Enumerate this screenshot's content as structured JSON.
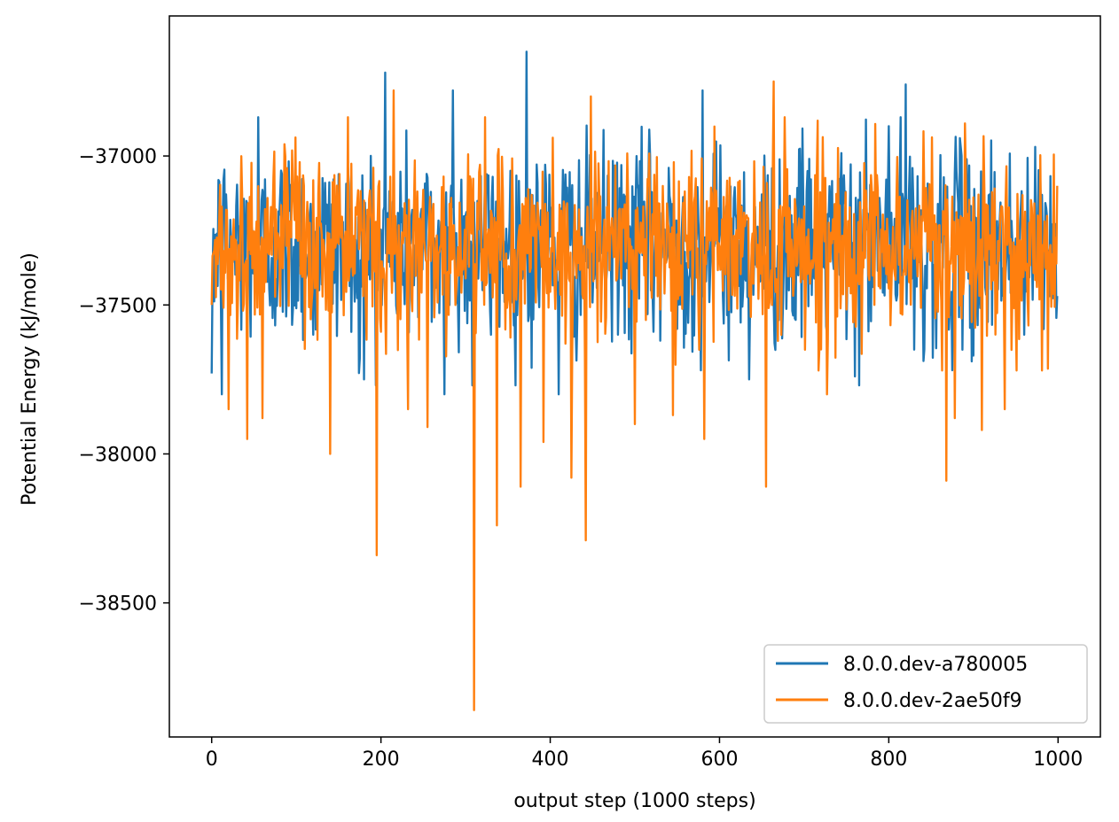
{
  "chart_data": {
    "type": "line",
    "title": "",
    "xlabel": "output step (1000 steps)",
    "ylabel": "Potential Energy (kJ/mole)",
    "xlim": [
      -50,
      1050
    ],
    "ylim": [
      -38950,
      -36530
    ],
    "xticks": [
      0,
      200,
      400,
      600,
      800,
      1000
    ],
    "xtick_labels": [
      "0",
      "200",
      "400",
      "600",
      "800",
      "1000"
    ],
    "yticks": [
      -37000,
      -37500,
      -38000,
      -38500
    ],
    "ytick_labels": [
      "−37000",
      "−37500",
      "−38000",
      "−38500"
    ],
    "grid": false,
    "legend_position": "lower-right",
    "x": {
      "start": 0,
      "end": 999,
      "count": 1000
    },
    "series": [
      {
        "name": "8.0.0.dev-a780005",
        "color": "#1f77b4",
        "mean": -37300,
        "typical_range": [
          -37650,
          -36950
        ],
        "points": [
          [
            0,
            -37730
          ],
          [
            12,
            -37800
          ],
          [
            55,
            -36870
          ],
          [
            120,
            -37600
          ],
          [
            175,
            -37680
          ],
          [
            180,
            -37750
          ],
          [
            205,
            -36720
          ],
          [
            275,
            -37800
          ],
          [
            285,
            -36780
          ],
          [
            308,
            -37770
          ],
          [
            330,
            -37600
          ],
          [
            372,
            -36650
          ],
          [
            410,
            -37800
          ],
          [
            480,
            -37600
          ],
          [
            530,
            -37620
          ],
          [
            580,
            -36780
          ],
          [
            635,
            -37750
          ],
          [
            690,
            -37550
          ],
          [
            760,
            -37740
          ],
          [
            800,
            -36900
          ],
          [
            820,
            -36760
          ],
          [
            830,
            -37650
          ],
          [
            900,
            -37670
          ],
          [
            960,
            -37600
          ],
          [
            999,
            -37470
          ]
        ]
      },
      {
        "name": "8.0.0.dev-2ae50f9",
        "color": "#ff7f0e",
        "mean": -37300,
        "typical_range": [
          -37600,
          -36950
        ],
        "points": [
          [
            0,
            -37500
          ],
          [
            20,
            -37850
          ],
          [
            42,
            -37950
          ],
          [
            60,
            -37880
          ],
          [
            140,
            -38000
          ],
          [
            195,
            -38340
          ],
          [
            215,
            -36780
          ],
          [
            232,
            -37850
          ],
          [
            255,
            -37910
          ],
          [
            310,
            -38860
          ],
          [
            337,
            -38240
          ],
          [
            365,
            -38110
          ],
          [
            392,
            -37960
          ],
          [
            418,
            -37630
          ],
          [
            425,
            -38080
          ],
          [
            442,
            -38290
          ],
          [
            448,
            -36800
          ],
          [
            500,
            -37900
          ],
          [
            545,
            -37870
          ],
          [
            582,
            -37950
          ],
          [
            655,
            -38110
          ],
          [
            664,
            -36750
          ],
          [
            727,
            -37800
          ],
          [
            868,
            -38090
          ],
          [
            878,
            -37880
          ],
          [
            910,
            -37920
          ],
          [
            937,
            -37850
          ],
          [
            999,
            -37100
          ]
        ]
      }
    ]
  }
}
